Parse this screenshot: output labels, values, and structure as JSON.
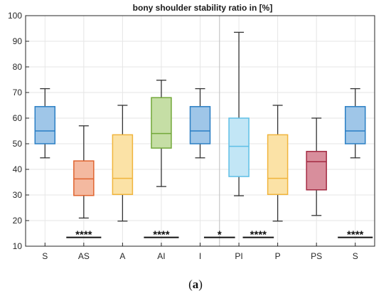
{
  "chart_data": {
    "type": "box",
    "title": "bony shoulder stability ratio in [%]",
    "ylim": [
      10,
      100
    ],
    "yticks": [
      10,
      20,
      30,
      40,
      50,
      60,
      70,
      80,
      90,
      100
    ],
    "grid": true,
    "categories": [
      "S",
      "AS",
      "A",
      "AI",
      "I",
      "PI",
      "P",
      "PS",
      "S"
    ],
    "boxes": [
      {
        "label": "S",
        "whisker_low": 44.5,
        "q1": 50,
        "median": 55,
        "q3": 64.5,
        "whisker_high": 71.5,
        "fill": "#9fc6e8",
        "stroke": "#2a7fc4"
      },
      {
        "label": "AS",
        "whisker_low": 21,
        "q1": 29.8,
        "median": 36.3,
        "q3": 43.3,
        "whisker_high": 57,
        "fill": "#f4b9a0",
        "stroke": "#e0642f"
      },
      {
        "label": "A",
        "whisker_low": 19.8,
        "q1": 30.2,
        "median": 36.5,
        "q3": 53.5,
        "whisker_high": 65,
        "fill": "#fbe2a6",
        "stroke": "#f0b43c"
      },
      {
        "label": "AI",
        "whisker_low": 33.3,
        "q1": 48.3,
        "median": 54,
        "q3": 68,
        "whisker_high": 74.8,
        "fill": "#c5dea5",
        "stroke": "#72a83a"
      },
      {
        "label": "I",
        "whisker_low": 44.5,
        "q1": 50,
        "median": 55,
        "q3": 64.5,
        "whisker_high": 71.5,
        "fill": "#9fc6e8",
        "stroke": "#2a7fc4"
      },
      {
        "label": "PI",
        "whisker_low": 29.7,
        "q1": 37.2,
        "median": 49,
        "q3": 60,
        "whisker_high": 93.5,
        "fill": "#c2e6f6",
        "stroke": "#5ebfe6"
      },
      {
        "label": "P",
        "whisker_low": 19.8,
        "q1": 30.2,
        "median": 36.5,
        "q3": 53.5,
        "whisker_high": 65,
        "fill": "#fbe2a6",
        "stroke": "#f0b43c"
      },
      {
        "label": "PS",
        "whisker_low": 22,
        "q1": 32,
        "median": 43,
        "q3": 47,
        "whisker_high": 60,
        "fill": "#d88e9c",
        "stroke": "#a32a42"
      },
      {
        "label": "S",
        "whisker_low": 44.5,
        "q1": 50,
        "median": 55,
        "q3": 64.5,
        "whisker_high": 71.5,
        "fill": "#9fc6e8",
        "stroke": "#2a7fc4"
      }
    ],
    "significance": [
      {
        "label": "****",
        "from": 0.55,
        "to": 1.45
      },
      {
        "label": "****",
        "from": 2.55,
        "to": 3.45
      },
      {
        "label": "*",
        "from": 4.1,
        "to": 4.9
      },
      {
        "label": "****",
        "from": 5.1,
        "to": 5.9
      },
      {
        "label": "****",
        "from": 7.55,
        "to": 8.45
      }
    ],
    "significance_y": 14,
    "divider_after_index": 4.5
  },
  "caption": {
    "open": "(",
    "letter": "a",
    "close": ")"
  }
}
